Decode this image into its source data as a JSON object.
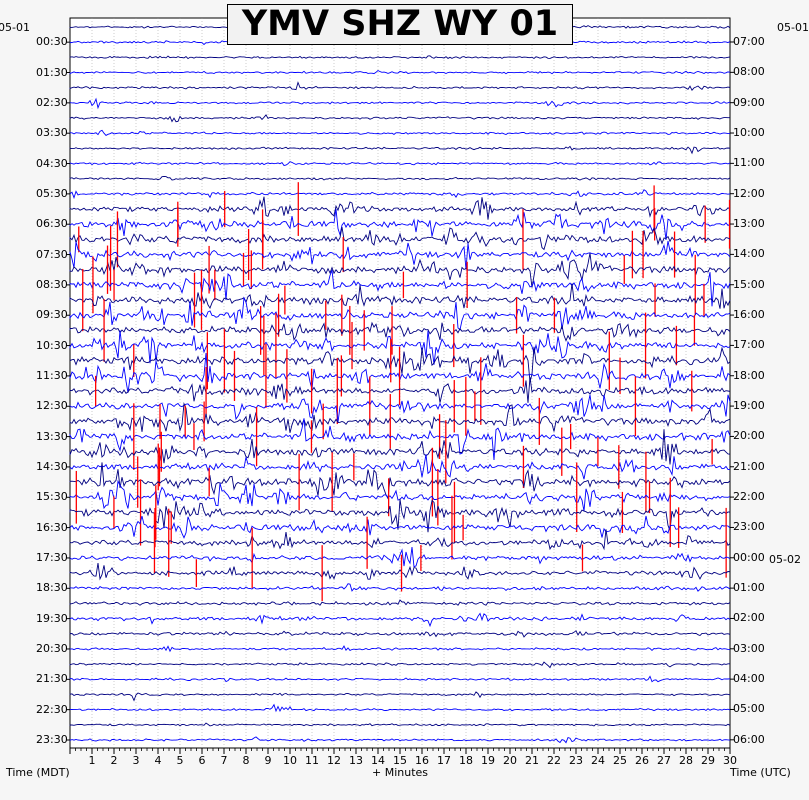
{
  "chart_data": {
    "type": "line",
    "title": "YMV SHZ WY 01",
    "xlabel": "+ Minutes",
    "left_axis_label": "Time (MDT)",
    "right_axis_label": "Time (UTC)",
    "left_date": "05-01",
    "right_date_top": "05-01",
    "right_date_next": "05-02",
    "x_range": [
      0,
      30
    ],
    "x_ticks": [
      "1",
      "2",
      "3",
      "4",
      "5",
      "6",
      "7",
      "8",
      "9",
      "10",
      "11",
      "12",
      "13",
      "14",
      "15",
      "16",
      "17",
      "18",
      "19",
      "20",
      "21",
      "22",
      "23",
      "24",
      "25",
      "26",
      "27",
      "28",
      "29",
      "30"
    ],
    "left_times": [
      "00:30",
      "01:30",
      "02:30",
      "03:30",
      "04:30",
      "05:30",
      "06:30",
      "07:30",
      "08:30",
      "09:30",
      "10:30",
      "11:30",
      "12:30",
      "13:30",
      "14:30",
      "15:30",
      "16:30",
      "17:30",
      "18:30",
      "19:30",
      "20:30",
      "21:30",
      "22:30",
      "23:30"
    ],
    "right_times": [
      "07:00",
      "08:00",
      "09:00",
      "10:00",
      "11:00",
      "12:00",
      "13:00",
      "14:00",
      "15:00",
      "16:00",
      "17:00",
      "18:00",
      "19:00",
      "20:00",
      "21:00",
      "22:00",
      "23:00",
      "00:00",
      "01:00",
      "02:00",
      "03:00",
      "04:00",
      "05:00",
      "06:00"
    ],
    "trace_count": 48,
    "trace_colors": [
      "#000080",
      "#0000ff"
    ],
    "clip_color": "#ff0000",
    "activity": [
      0.05,
      0.08,
      0.05,
      0.05,
      0.07,
      0.06,
      0.06,
      0.06,
      0.05,
      0.07,
      0.07,
      0.2,
      0.55,
      0.9,
      1.0,
      0.9,
      1.0,
      0.95,
      1.0,
      0.9,
      0.95,
      1.0,
      0.95,
      1.0,
      0.95,
      0.9,
      1.0,
      0.95,
      0.9,
      0.85,
      1.0,
      0.9,
      0.95,
      0.85,
      0.7,
      0.5,
      0.45,
      0.3,
      0.25,
      0.35,
      0.25,
      0.1,
      0.07,
      0.06,
      0.05,
      0.05,
      0.05,
      0.04
    ]
  }
}
